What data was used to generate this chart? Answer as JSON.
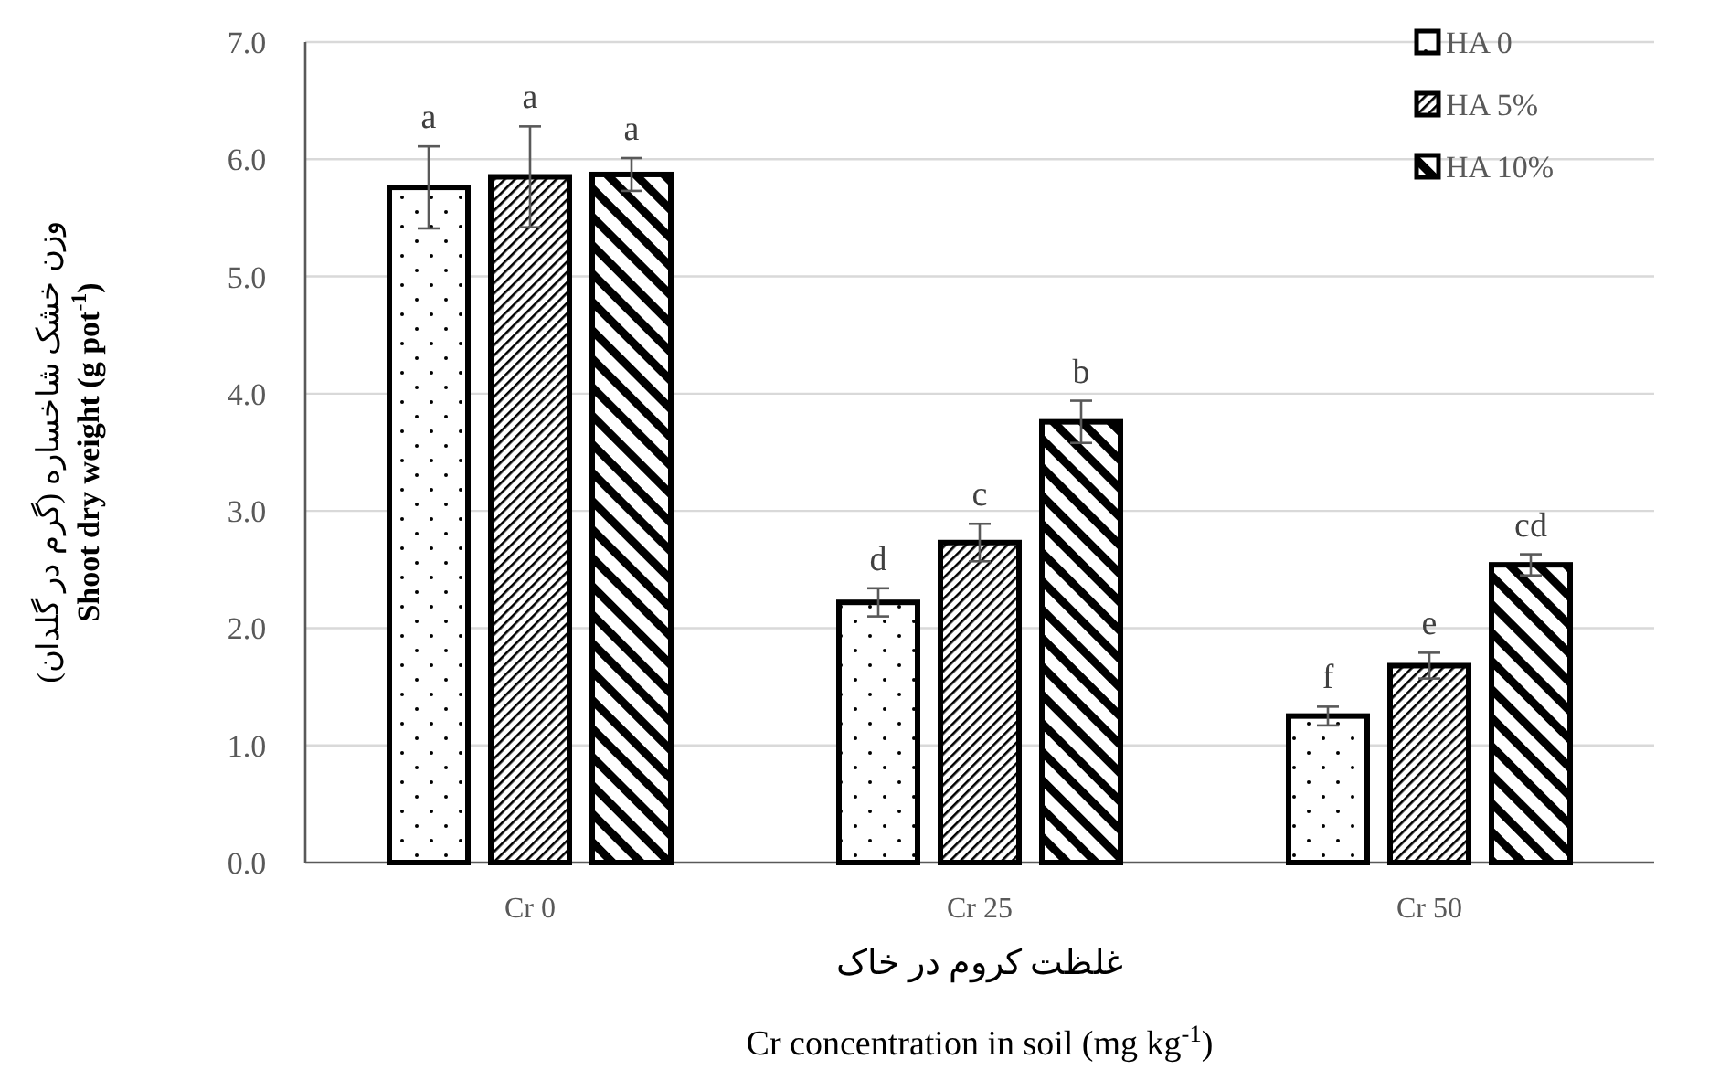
{
  "chart_data": {
    "type": "bar",
    "ylabel": "وزن خشک شاخساره  (گرم در گلدان)\n**Shoot dry weight  (g pot$^{-1}$)**",
    "xlabel": "غلظت کروم در خاک\nCr concentration in soil (mg kg$^{-1}$)",
    "categories": [
      "Cr 0",
      "Cr 25",
      "Cr 50"
    ],
    "series": [
      {
        "name": "HA 0",
        "color": "#000000",
        "values": [
          5.76,
          2.22,
          1.25
        ],
        "errors": [
          0.35,
          0.12,
          0.08
        ],
        "value_labels": [
          "a",
          "d",
          "f"
        ]
      },
      {
        "name": "HA 5%",
        "color": "#000000",
        "values": [
          5.85,
          2.73,
          1.68
        ],
        "errors": [
          0.43,
          0.16,
          0.11
        ],
        "value_labels": [
          "a",
          "c",
          "e"
        ]
      },
      {
        "name": "HA 10%",
        "color": "#000000",
        "values": [
          5.87,
          3.76,
          2.54
        ],
        "errors": [
          0.14,
          0.18,
          0.09
        ],
        "value_labels": [
          "a",
          "b",
          "cd"
        ]
      }
    ],
    "ylim": [
      0,
      7
    ],
    "yticks": [
      {
        "value": 0,
        "label": "0.0"
      },
      {
        "value": 1,
        "label": "1.0"
      },
      {
        "value": 2,
        "label": "2.0"
      },
      {
        "value": 3,
        "label": "3.0"
      },
      {
        "value": 4,
        "label": "4.0"
      },
      {
        "value": 5,
        "label": "5.0"
      },
      {
        "value": 6,
        "label": "6.0"
      },
      {
        "value": 7,
        "label": "7.0"
      }
    ],
    "grid": "y",
    "legend": "top right"
  }
}
